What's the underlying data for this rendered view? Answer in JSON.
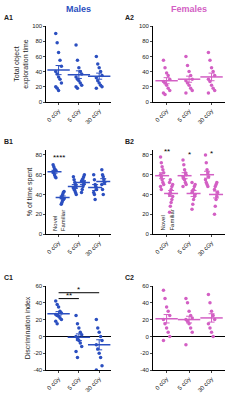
{
  "chart_data": [
    {
      "type": "scatter",
      "title": "A1",
      "subtitle": "Males",
      "ylabel": "Total object exploration time",
      "color": "#2b4fc0",
      "categories": [
        "0 cGy",
        "5 cGy",
        "30 cGy"
      ],
      "series": [
        {
          "values": [
            [
              90,
              78,
              65,
              55,
              47,
              40,
              37,
              33,
              30,
              25,
              20,
              18,
              15
            ],
            [
              75,
              55,
              45,
              40,
              37,
              33,
              30,
              28,
              25,
              22,
              20,
              18
            ],
            [
              60,
              50,
              45,
              40,
              35,
              32,
              28,
              25,
              22,
              20,
              18
            ]
          ],
          "mean": [
            42,
            36,
            34
          ],
          "sem": [
            6,
            5,
            4
          ]
        }
      ],
      "ylim": [
        0,
        100
      ],
      "yticks": [
        0,
        20,
        40,
        60,
        80,
        100
      ],
      "grid": false,
      "annotations": []
    },
    {
      "type": "scatter",
      "title": "A2",
      "subtitle": "Females",
      "color": "#d35fc4",
      "categories": [
        "0 cGy",
        "5 cGy",
        "30 cGy"
      ],
      "series": [
        {
          "values": [
            [
              55,
              45,
              38,
              35,
              30,
              27,
              25,
              22,
              18,
              15,
              12,
              10
            ],
            [
              60,
              48,
              40,
              35,
              30,
              28,
              25,
              22,
              18,
              15,
              12
            ],
            [
              65,
              55,
              45,
              40,
              35,
              30,
              27,
              22,
              18,
              15,
              12
            ]
          ],
          "mean": [
            28,
            30,
            33
          ],
          "sem": [
            4,
            4,
            5
          ]
        }
      ],
      "ylim": [
        0,
        100
      ],
      "yticks": [
        0,
        20,
        40,
        60,
        80,
        100
      ],
      "grid": false,
      "annotations": []
    },
    {
      "type": "scatter",
      "title": "B1",
      "ylabel": "% of time spent",
      "color": "#2b4fc0",
      "categories": [
        "0 cGy",
        "5 cGy",
        "30 cGy"
      ],
      "series": [
        {
          "name": "Novel",
          "values": [
            [
              70,
              68,
              66,
              65,
              64,
              63,
              62,
              60,
              58,
              57
            ],
            [
              58,
              55,
              52,
              50,
              48,
              47,
              45,
              44,
              42,
              40
            ],
            [
              60,
              55,
              50,
              48,
              45,
              42,
              40,
              35
            ]
          ],
          "mean": [
            63,
            48,
            47
          ],
          "sem": [
            1.5,
            2,
            3
          ]
        },
        {
          "name": "Familiar",
          "values": [
            [
              30,
              32,
              34,
              35,
              36,
              37,
              38,
              40,
              42,
              43
            ],
            [
              42,
              45,
              48,
              50,
              52,
              53,
              55,
              56,
              58,
              60
            ],
            [
              65,
              60,
              58,
              55,
              52,
              50,
              45,
              40
            ]
          ],
          "mean": [
            37,
            52,
            53
          ],
          "sem": [
            1.5,
            2,
            3
          ]
        }
      ],
      "ylim": [
        0,
        85
      ],
      "yticks": [
        0,
        20,
        40,
        60,
        80
      ],
      "grid": false,
      "annotations": [
        {
          "x": 0,
          "y": 74,
          "text": "****"
        }
      ]
    },
    {
      "type": "scatter",
      "title": "B2",
      "color": "#d35fc4",
      "categories": [
        "0 cGy",
        "5 cGy",
        "30 cGy"
      ],
      "series": [
        {
          "name": "Novel",
          "values": [
            [
              78,
              72,
              68,
              65,
              62,
              60,
              58,
              55,
              52,
              50,
              48,
              45
            ],
            [
              75,
              70,
              65,
              62,
              60,
              58,
              56,
              55,
              52,
              50,
              48
            ],
            [
              80,
              72,
              65,
              62,
              58,
              55,
              52,
              50,
              48
            ]
          ],
          "mean": [
            59,
            59,
            60
          ],
          "sem": [
            3,
            3,
            3.5
          ]
        },
        {
          "name": "Familiar",
          "values": [
            [
              22,
              28,
              32,
              35,
              38,
              40,
              42,
              45,
              48,
              50,
              52,
              55
            ],
            [
              25,
              30,
              35,
              38,
              40,
              42,
              44,
              45,
              48,
              50,
              52
            ],
            [
              20,
              28,
              35,
              38,
              42,
              45,
              48,
              50,
              52
            ]
          ],
          "mean": [
            41,
            41,
            40
          ],
          "sem": [
            3,
            3,
            3.5
          ]
        }
      ],
      "ylim": [
        0,
        85
      ],
      "yticks": [
        0,
        20,
        40,
        60,
        80
      ],
      "grid": false,
      "annotations": [
        {
          "x": 0,
          "y": 80,
          "text": "**"
        },
        {
          "x": 1,
          "y": 77,
          "text": "*"
        },
        {
          "x": 2,
          "y": 78,
          "text": "*"
        }
      ]
    },
    {
      "type": "scatter",
      "title": "C1",
      "ylabel": "Discrimination index",
      "color": "#2b4fc0",
      "categories": [
        "0 cGy",
        "5 cGy",
        "30 cGy"
      ],
      "series": [
        {
          "values": [
            [
              42,
              38,
              35,
              30,
              28,
              26,
              25,
              24,
              22,
              20,
              18,
              15
            ],
            [
              25,
              15,
              10,
              5,
              2,
              0,
              -3,
              -5,
              -8,
              -12,
              -18,
              -25
            ],
            [
              20,
              10,
              5,
              0,
              -5,
              -10,
              -15,
              -20,
              -25,
              -35,
              -40
            ]
          ],
          "mean": [
            27,
            -1,
            -10
          ],
          "sem": [
            2.5,
            4,
            6
          ]
        }
      ],
      "ylim": [
        -40,
        60
      ],
      "yticks": [
        -40,
        -20,
        0,
        20,
        40,
        60
      ],
      "grid": false,
      "annotations": [
        {
          "x": [
            0,
            1
          ],
          "y": 45,
          "text": "**"
        },
        {
          "x": [
            0,
            2
          ],
          "y": 52,
          "text": "*"
        }
      ]
    },
    {
      "type": "scatter",
      "title": "C2",
      "color": "#d35fc4",
      "categories": [
        "0 cGy",
        "5 cGy",
        "30 cGy"
      ],
      "series": [
        {
          "values": [
            [
              55,
              45,
              35,
              30,
              25,
              20,
              15,
              10,
              5,
              0,
              -5
            ],
            [
              45,
              40,
              30,
              25,
              22,
              20,
              18,
              15,
              10,
              5,
              -10
            ],
            [
              50,
              40,
              30,
              25,
              20,
              15,
              10,
              5,
              0
            ]
          ],
          "mean": [
            21,
            20,
            22
          ],
          "sem": [
            5,
            4,
            5
          ]
        }
      ],
      "ylim": [
        -40,
        60
      ],
      "yticks": [
        -40,
        -20,
        0,
        20,
        40,
        60
      ],
      "grid": false,
      "annotations": []
    }
  ]
}
